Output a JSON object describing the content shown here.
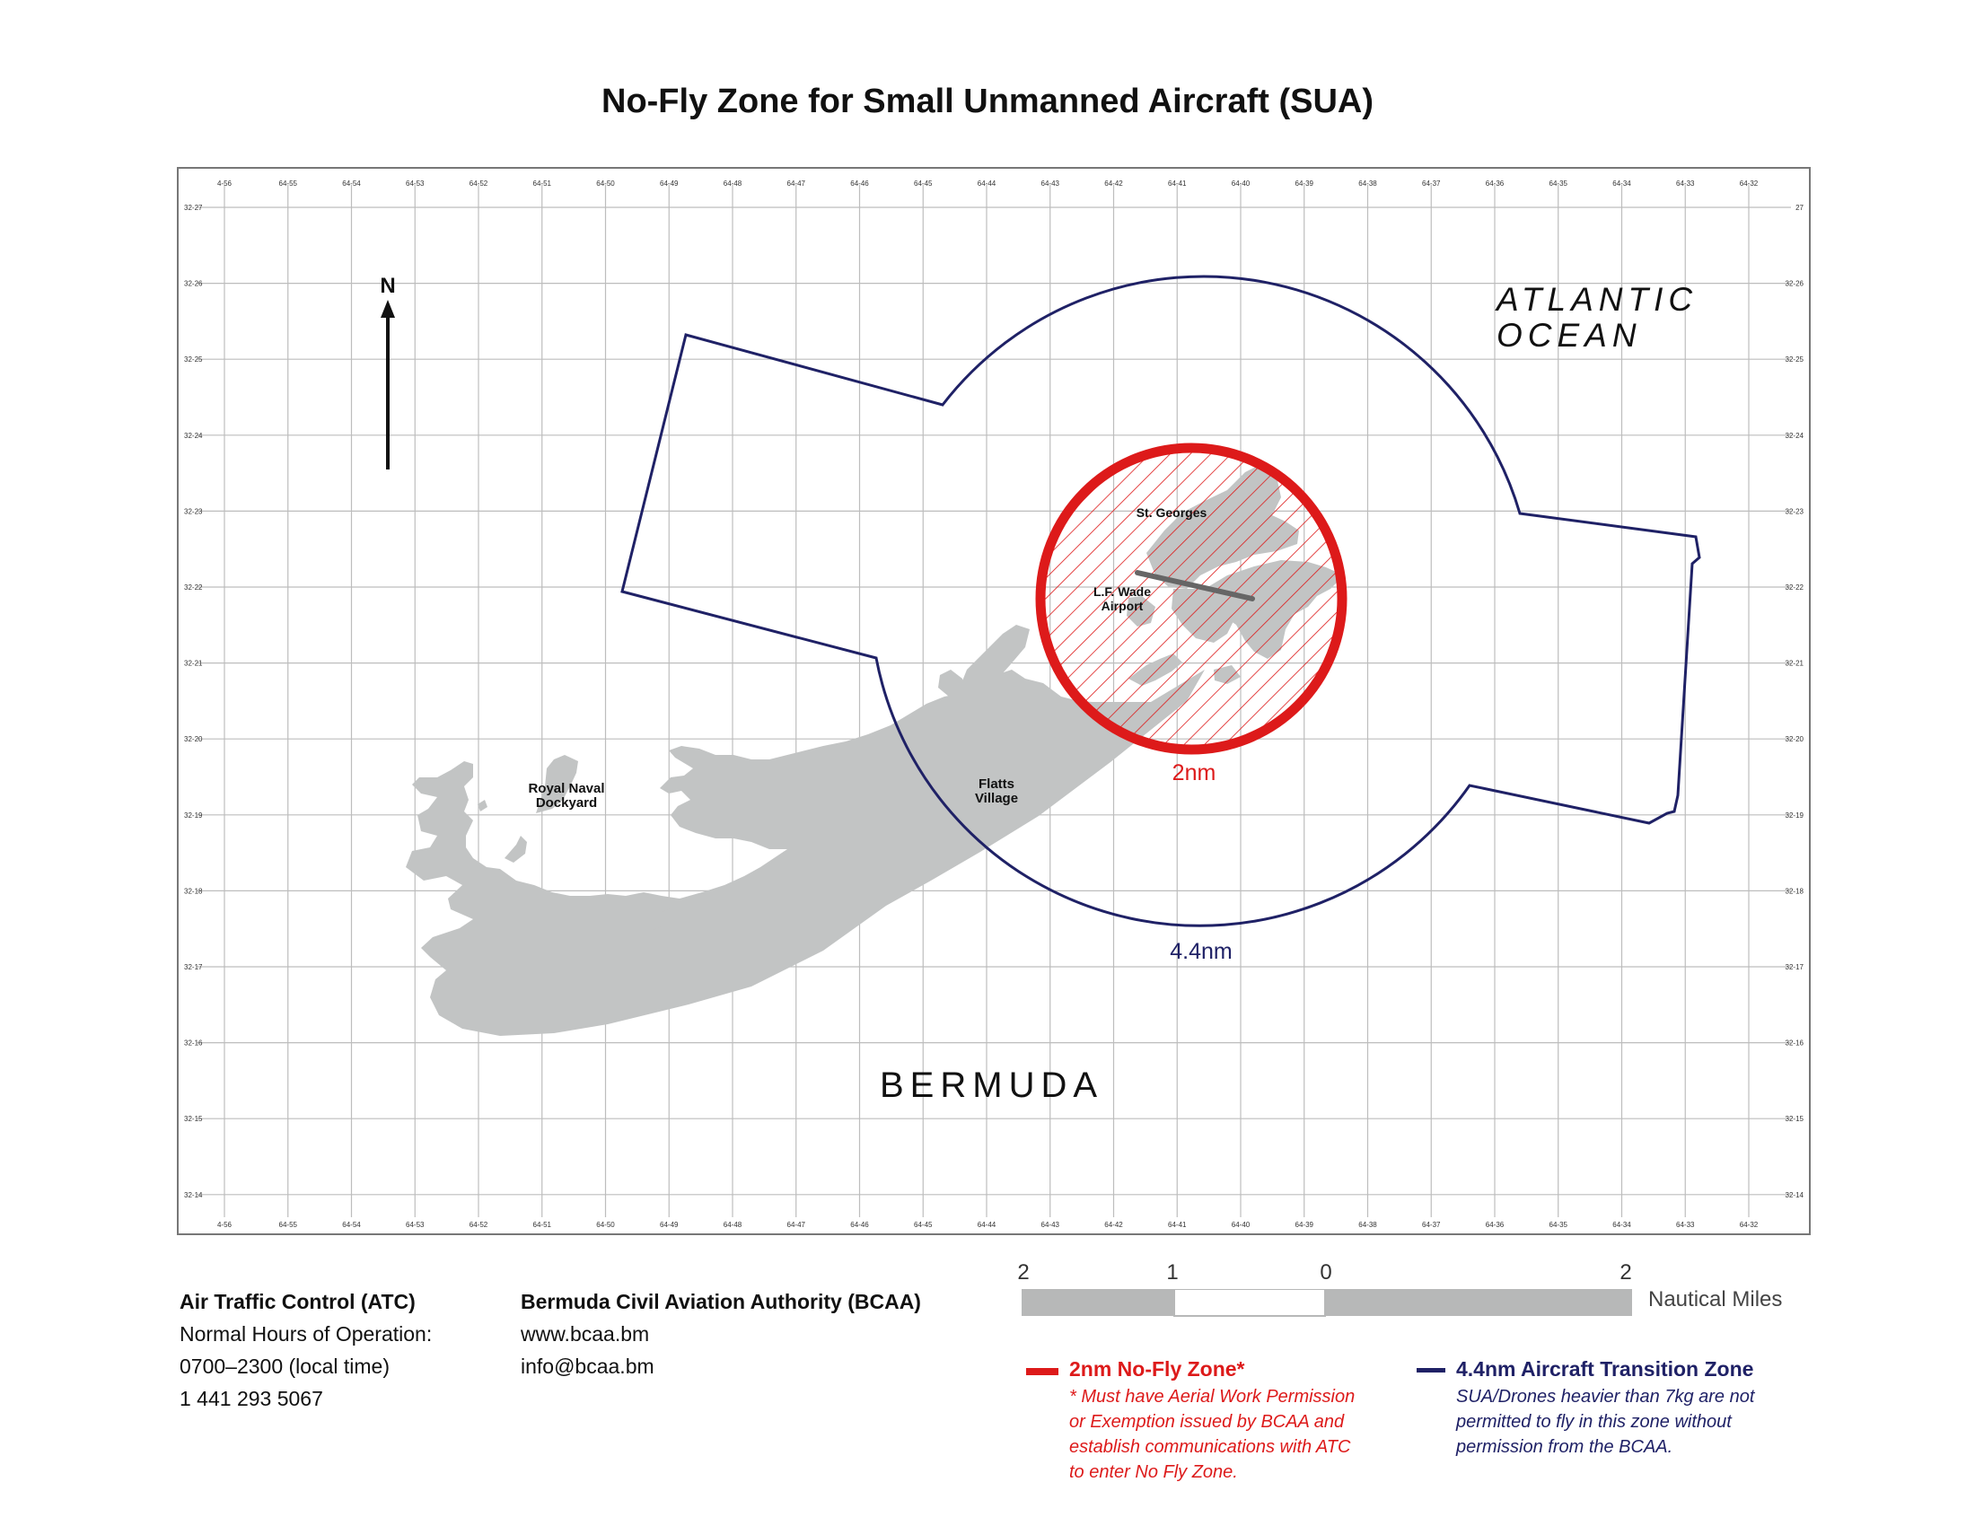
{
  "title": "No-Fly Zone for Small Unmanned Aircraft (SUA)",
  "map": {
    "labels": {
      "ocean_line1": "ATLANTIC",
      "ocean_line2": "OCEAN",
      "island": "BERMUDA",
      "north": "N",
      "st_georges": "St. Georges",
      "airport_line1": "L.F. Wade",
      "airport_line2": "Airport",
      "flatts_line1": "Flatts",
      "flatts_line2": "Village",
      "dockyard_line1": "Royal Naval",
      "dockyard_line2": "Dockyard",
      "radius_inner": "2nm",
      "radius_outer": "4.4nm"
    },
    "grid_lon_labels": [
      "4-56",
      "64-55",
      "64-54",
      "64-53",
      "64-52",
      "64-51",
      "64-50",
      "64-49",
      "64-48",
      "64-47",
      "64-46",
      "64-45",
      "64-44",
      "64-43",
      "64-42",
      "64-41",
      "64-40",
      "64-39",
      "64-38",
      "64-37",
      "64-36",
      "64-35",
      "64-34",
      "64-33",
      "64-32"
    ],
    "grid_lat_labels_left": [
      "32-27",
      "32-26",
      "32-25",
      "32-24",
      "32-23",
      "32-22",
      "32-21",
      "32-20",
      "32-19",
      "32-18",
      "32-17",
      "32-16",
      "32-15",
      "32-14"
    ],
    "grid_lat_labels_right": [
      "27",
      "32-26",
      "32-25",
      "32-24",
      "32-23",
      "32-22",
      "32-21",
      "32-20",
      "32-19",
      "32-18",
      "32-17",
      "32-16",
      "32-15",
      "32-14"
    ],
    "colors": {
      "no_fly": "#dd1a1a",
      "transition": "#1f2166",
      "land": "#c2c4c4",
      "grid": "#b8b8b8",
      "frame": "#777777"
    }
  },
  "atc": {
    "heading": "Air Traffic Control (ATC)",
    "line1": "Normal Hours of Operation:",
    "line2": "0700–2300 (local time)",
    "line3": "1 441 293 5067"
  },
  "bcaa": {
    "heading": "Bermuda Civil Aviation Authority (BCAA)",
    "website": "www.bcaa.bm",
    "email": "info@bcaa.bm"
  },
  "scale": {
    "numbers": [
      "2",
      "1",
      "0",
      "2"
    ],
    "unit": "Nautical Miles"
  },
  "legend": {
    "no_fly_title": "2nm No-Fly Zone*",
    "no_fly_note": "* Must have Aerial Work Permission\n   or Exemption issued by BCAA and\n   establish communications with ATC\n   to enter No Fly Zone.",
    "transition_title": "4.4nm Aircraft Transition Zone",
    "transition_note": "SUA/Drones heavier than 7kg are not\npermitted to fly in this zone without\npermission from the BCAA."
  }
}
